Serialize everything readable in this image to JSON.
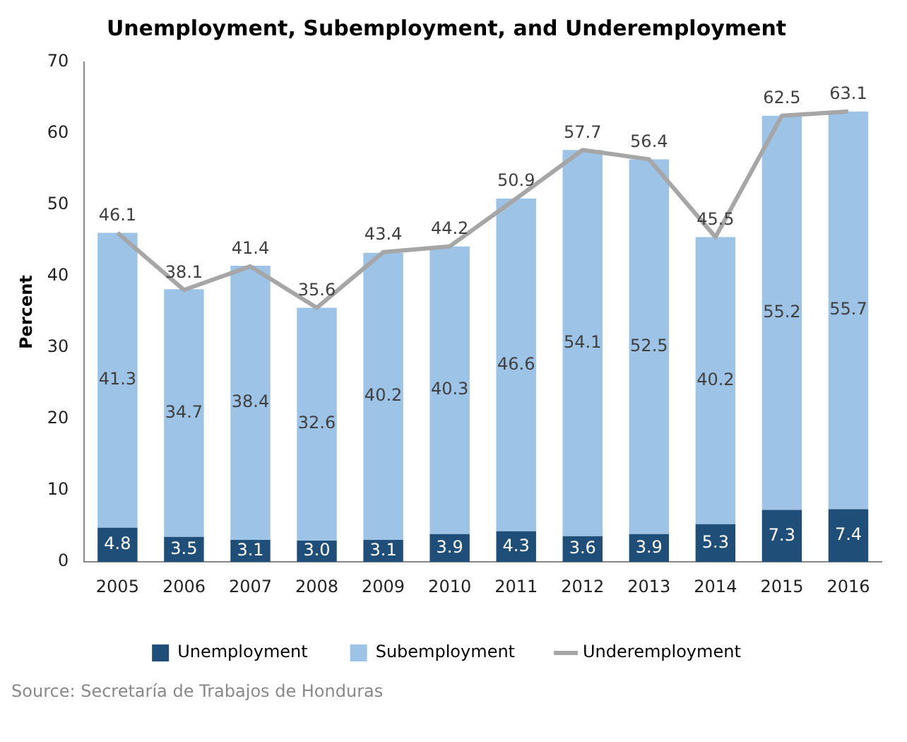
{
  "chart_data": {
    "type": "bar",
    "title": "Unemployment, Subemployment, and Underemployment",
    "ylabel": "Percent",
    "categories": [
      "2005",
      "2006",
      "2007",
      "2008",
      "2009",
      "2010",
      "2011",
      "2012",
      "2013",
      "2014",
      "2015",
      "2016"
    ],
    "stacked": true,
    "series": [
      {
        "name": "Unemployment",
        "type": "bar",
        "color": "#1f4e79",
        "values": [
          4.8,
          3.5,
          3.1,
          3.0,
          3.1,
          3.9,
          4.3,
          3.6,
          3.9,
          5.3,
          7.3,
          7.4
        ],
        "value_labels": [
          "4.8",
          "3.5",
          "3.1",
          "3.0",
          "3.1",
          "3.9",
          "4.3",
          "3.6",
          "3.9",
          "5.3",
          "7.3",
          "7.4"
        ]
      },
      {
        "name": "Subemployment",
        "type": "bar",
        "color": "#9dc3e6",
        "values": [
          41.3,
          34.7,
          38.4,
          32.6,
          40.2,
          40.3,
          46.6,
          54.1,
          52.5,
          40.2,
          55.2,
          55.7
        ],
        "value_labels": [
          "41.3",
          "34.7",
          "38.4",
          "32.6",
          "40.2",
          "40.3",
          "46.6",
          "54.1",
          "52.5",
          "40.2",
          "55.2",
          "55.7"
        ]
      },
      {
        "name": "Underemployment",
        "type": "line",
        "color": "#a6a6a6",
        "marker": "none",
        "line_style": "solid",
        "values": [
          46.1,
          38.1,
          41.4,
          35.6,
          43.4,
          44.2,
          50.9,
          57.7,
          56.4,
          45.5,
          62.5,
          63.1
        ],
        "value_labels": [
          "46.1",
          "38.1",
          "41.4",
          "35.6",
          "43.4",
          "44.2",
          "50.9",
          "57.7",
          "56.4",
          "45.5",
          "62.5",
          "63.1"
        ]
      }
    ],
    "ylim": [
      0,
      70
    ],
    "yticks": [
      0,
      10,
      20,
      30,
      40,
      50,
      60,
      70
    ],
    "grid": false,
    "legend": "bottom",
    "annotations": [
      "Source: Secretaría de Trabajos de Honduras"
    ]
  }
}
